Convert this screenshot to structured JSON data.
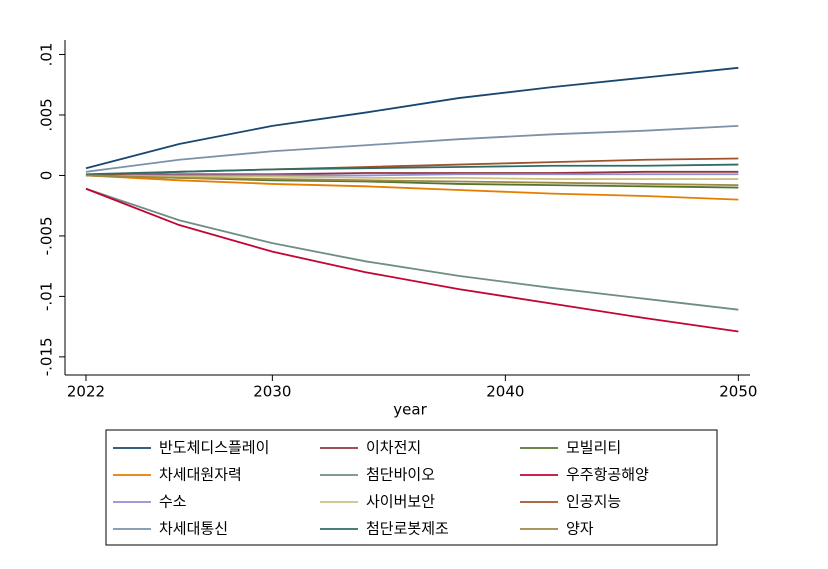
{
  "chart_data": {
    "type": "line",
    "x_label": "year",
    "x": [
      2022,
      2026,
      2030,
      2034,
      2038,
      2042,
      2046,
      2050
    ],
    "xlim": [
      2021.1,
      2050.5
    ],
    "xticks": [
      2022,
      2030,
      2040,
      2050
    ],
    "ylim": [
      -0.0165,
      0.0112
    ],
    "yticks": [
      {
        "value": 0.01,
        "label": ".01"
      },
      {
        "value": 0.005,
        "label": ".005"
      },
      0,
      {
        "value": -0.005,
        "label": "-.005"
      },
      {
        "value": -0.01,
        "label": "-.01"
      },
      {
        "value": -0.015,
        "label": "-.015"
      }
    ],
    "legend": "bottom",
    "series": [
      {
        "name": "반도체디스플레이",
        "color": "#1a476f",
        "values": [
          0.0006,
          0.0026,
          0.0041,
          0.0052,
          0.0064,
          0.0073,
          0.0081,
          0.0089
        ]
      },
      {
        "name": "이차전지",
        "color": "#90353b",
        "values": [
          0,
          0.0001,
          0.0001,
          0.0002,
          0.0002,
          0.0002,
          0.0003,
          0.0003
        ]
      },
      {
        "name": "모빌리티",
        "color": "#55752f",
        "values": [
          0,
          -0.0002,
          -0.0004,
          -0.0005,
          -0.0007,
          -0.0008,
          -0.0009,
          -0.001
        ]
      },
      {
        "name": "차세대원자력",
        "color": "#e37e00",
        "values": [
          0,
          -0.0004,
          -0.0007,
          -0.0009,
          -0.0012,
          -0.0015,
          -0.0017,
          -0.002
        ]
      },
      {
        "name": "첨단바이오",
        "color": "#6e8e84",
        "values": [
          -0.0011,
          -0.0037,
          -0.0056,
          -0.0071,
          -0.0083,
          -0.0093,
          -0.0102,
          -0.0111
        ]
      },
      {
        "name": "우주항공해양",
        "color": "#c10534",
        "values": [
          -0.0011,
          -0.0041,
          -0.0063,
          -0.008,
          -0.0094,
          -0.0106,
          -0.0118,
          -0.0129
        ]
      },
      {
        "name": "수소",
        "color": "#938dd2",
        "values": [
          0,
          0,
          0,
          0,
          0.0001,
          0.0001,
          0.0001,
          0.0001
        ]
      },
      {
        "name": "사이버보안",
        "color": "#cac27e",
        "values": [
          0,
          -0.0001,
          -0.0001,
          -0.0002,
          -0.0002,
          -0.0003,
          -0.0003,
          -0.0003
        ]
      },
      {
        "name": "인공지능",
        "color": "#a0522d",
        "values": [
          0,
          0.0003,
          0.0005,
          0.0007,
          0.0009,
          0.0011,
          0.0013,
          0.0014
        ]
      },
      {
        "name": "차세대통신",
        "color": "#7b92a8",
        "values": [
          0.0003,
          0.0013,
          0.002,
          0.0025,
          0.003,
          0.0034,
          0.0037,
          0.0041
        ]
      },
      {
        "name": "첨단로봇제조",
        "color": "#2d6d66",
        "values": [
          0.0001,
          0.0003,
          0.0005,
          0.0006,
          0.0007,
          0.0008,
          0.0008,
          0.0009
        ]
      },
      {
        "name": "양자",
        "color": "#9c8847",
        "values": [
          0,
          -0.0002,
          -0.0003,
          -0.0004,
          -0.0005,
          -0.0006,
          -0.0007,
          -0.0008
        ]
      }
    ]
  }
}
